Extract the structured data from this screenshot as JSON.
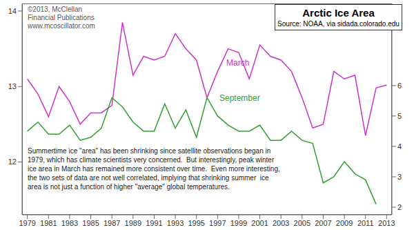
{
  "chart_data": {
    "type": "line",
    "title": "Arctic Ice Area",
    "subtitle": "Source: NOAA, via sidada.colorado.edu",
    "annotations": [
      {
        "lines": [
          "©2013, McClellan",
          "Financial Publications",
          "www.mcoscillator.com"
        ]
      },
      {
        "lines": [
          "Summertime ice \"area\" has been shrinking since satellite observations began in",
          "1979, which has climate scientists very concerned.  But interestingly, peak winter",
          "ice area in March has remained more consistent over time.  Even more interesting,",
          "the two sets of data are not well correlated, implying that shrinking summer  ice",
          "area is not just a function of higher \"average\" global temperatures."
        ]
      }
    ],
    "x": [
      1979,
      1980,
      1981,
      1982,
      1983,
      1984,
      1985,
      1986,
      1987,
      1988,
      1989,
      1990,
      1991,
      1992,
      1993,
      1994,
      1995,
      1996,
      1997,
      1998,
      1999,
      2000,
      2001,
      2002,
      2003,
      2004,
      2005,
      2006,
      2007,
      2008,
      2009,
      2010,
      2011,
      2012,
      2013
    ],
    "series": [
      {
        "name": "March",
        "color": "#cc33cc",
        "axis": "y",
        "values": [
          13.1,
          12.9,
          12.6,
          13.0,
          12.8,
          12.5,
          12.65,
          12.65,
          12.75,
          13.85,
          13.15,
          13.4,
          13.35,
          13.4,
          13.7,
          13.5,
          13.35,
          12.85,
          13.2,
          13.5,
          13.45,
          13.1,
          13.55,
          13.4,
          13.35,
          13.2,
          12.85,
          12.45,
          12.5,
          13.2,
          13.1,
          13.15,
          12.35,
          12.98,
          13.02
        ]
      },
      {
        "name": "September",
        "color": "#33a033",
        "axis": "y2",
        "values": [
          4.5,
          4.8,
          4.4,
          4.4,
          4.7,
          4.2,
          4.3,
          4.6,
          5.6,
          5.3,
          4.8,
          4.5,
          4.5,
          5.4,
          4.6,
          5.2,
          4.3,
          5.6,
          5.0,
          4.7,
          4.5,
          4.5,
          4.7,
          4.2,
          4.2,
          4.5,
          4.2,
          4.1,
          2.8,
          3.0,
          3.5,
          3.1,
          2.9,
          2.1,
          null
        ]
      }
    ],
    "xlim": [
      1978.5,
      2013.5
    ],
    "xticks": [
      1979,
      1981,
      1983,
      1985,
      1987,
      1989,
      1991,
      1993,
      1995,
      1997,
      1999,
      2001,
      2003,
      2005,
      2007,
      2009,
      2011,
      2013
    ],
    "ylim": [
      11.3,
      14.1
    ],
    "yticks": [
      12,
      13,
      14
    ],
    "y2lim": [
      1.75,
      8.7
    ],
    "y2ticks": [
      2,
      3,
      4,
      5,
      6
    ]
  }
}
